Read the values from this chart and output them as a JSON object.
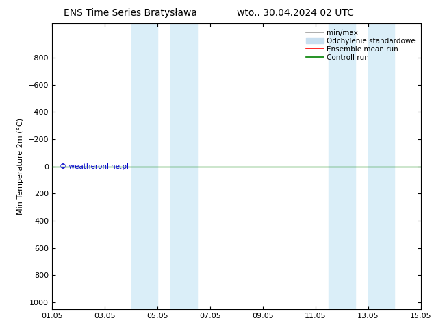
{
  "title_left": "ENS Time Series Bratysława",
  "title_right": "wto.. 30.04.2024 02 UTC",
  "ylabel": "Min Temperature 2m (°C)",
  "ylim_bottom": 1050,
  "ylim_top": -1050,
  "yticks": [
    -800,
    -600,
    -400,
    -200,
    0,
    200,
    400,
    600,
    800,
    1000
  ],
  "x_start": 0,
  "x_end": 14,
  "xtick_positions": [
    0,
    2,
    4,
    6,
    8,
    10,
    12,
    14
  ],
  "xtick_labels": [
    "01.05",
    "03.05",
    "05.05",
    "07.05",
    "09.05",
    "11.05",
    "13.05",
    "15.05"
  ],
  "shaded_regions": [
    [
      3.0,
      4.0
    ],
    [
      4.5,
      5.5
    ],
    [
      10.5,
      11.5
    ],
    [
      12.0,
      13.0
    ]
  ],
  "shade_color": "#daeef8",
  "control_run_y": 0,
  "control_run_color": "#008000",
  "ensemble_mean_color": "#ff0000",
  "minmax_color": "#a0a0a0",
  "std_color": "#c8dff0",
  "copyright_text": "© weatheronline.pl",
  "copyright_color": "#0000cc",
  "background_color": "#ffffff",
  "plot_bg_color": "#ffffff",
  "title_fontsize": 10,
  "tick_fontsize": 8,
  "ylabel_fontsize": 8,
  "legend_fontsize": 7.5
}
